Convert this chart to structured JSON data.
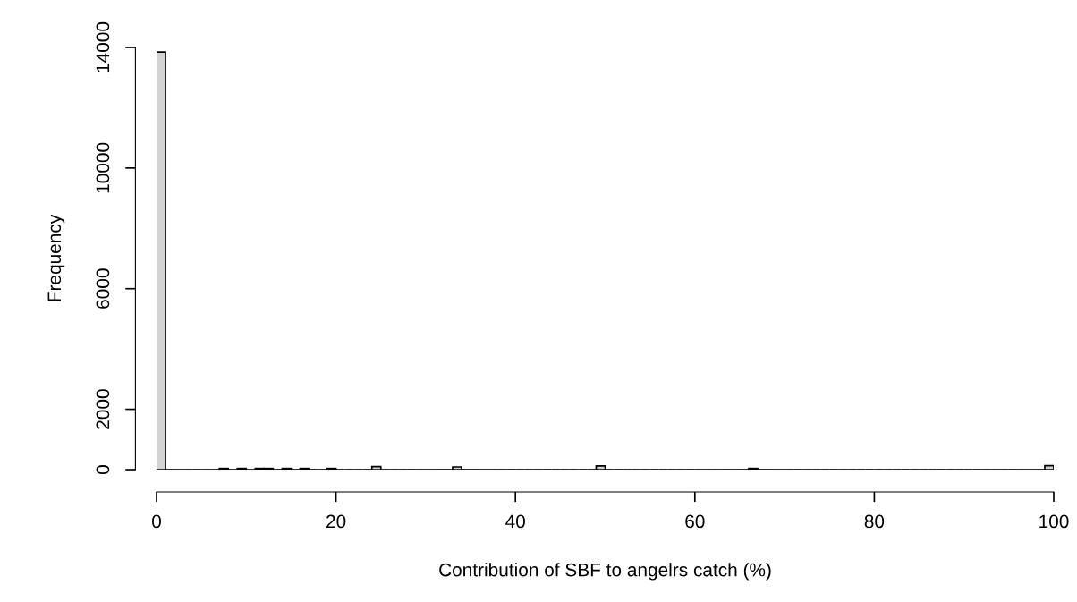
{
  "chart_data": {
    "type": "histogram",
    "xlabel": "Contribution of SBF to angelrs catch (%)",
    "ylabel": "Frequency",
    "bins": [
      0,
      1,
      2,
      3,
      4,
      5,
      6,
      7,
      8,
      9,
      10,
      11,
      12,
      13,
      14,
      15,
      16,
      17,
      18,
      19,
      20,
      21,
      22,
      23,
      24,
      25,
      26,
      27,
      28,
      29,
      30,
      31,
      32,
      33,
      34,
      35,
      36,
      37,
      38,
      39,
      40,
      41,
      42,
      43,
      44,
      45,
      46,
      47,
      48,
      49,
      50,
      51,
      52,
      53,
      54,
      55,
      56,
      57,
      58,
      59,
      60,
      61,
      62,
      63,
      64,
      65,
      66,
      67,
      68,
      69,
      70,
      71,
      72,
      73,
      74,
      75,
      76,
      77,
      78,
      79,
      80,
      81,
      82,
      83,
      84,
      85,
      86,
      87,
      88,
      89,
      90,
      91,
      92,
      93,
      94,
      95,
      96,
      97,
      98,
      99,
      100
    ],
    "values": [
      13850,
      0,
      0,
      0,
      0,
      0,
      0,
      40,
      0,
      40,
      0,
      40,
      40,
      0,
      40,
      0,
      40,
      0,
      0,
      40,
      0,
      0,
      0,
      0,
      100,
      0,
      0,
      0,
      0,
      0,
      0,
      0,
      0,
      90,
      0,
      0,
      0,
      0,
      0,
      0,
      0,
      0,
      0,
      0,
      0,
      0,
      0,
      0,
      0,
      120,
      0,
      0,
      0,
      0,
      0,
      0,
      0,
      0,
      0,
      0,
      0,
      0,
      0,
      0,
      0,
      0,
      40,
      0,
      0,
      0,
      0,
      0,
      0,
      0,
      0,
      0,
      0,
      0,
      0,
      0,
      0,
      0,
      0,
      0,
      0,
      0,
      0,
      0,
      0,
      0,
      0,
      0,
      0,
      0,
      0,
      0,
      0,
      0,
      0,
      130
    ],
    "color": "#d3d3d3",
    "xlim": [
      0,
      100
    ],
    "ylim": [
      0,
      14000
    ],
    "xticks": [
      0,
      20,
      40,
      60,
      80,
      100
    ],
    "yticks": [
      0,
      2000,
      6000,
      10000,
      14000
    ],
    "grid": false
  }
}
